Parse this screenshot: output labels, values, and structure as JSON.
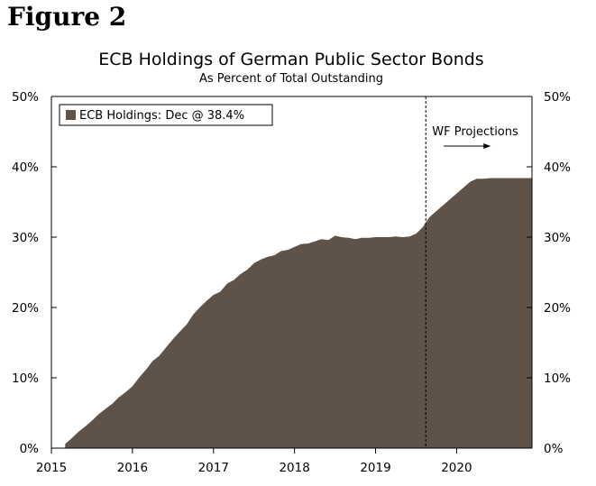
{
  "figure_label": "Figure 2",
  "chart_data": {
    "type": "area",
    "title": "ECB Holdings of German Public Sector Bonds",
    "subtitle": "As Percent of Total Outstanding",
    "xlabel": "",
    "ylabel": "",
    "xlim": [
      2015.0,
      2020.93
    ],
    "ylim": [
      0,
      50
    ],
    "x_ticks": [
      {
        "value": 2015.0,
        "label": "2015"
      },
      {
        "value": 2016.0,
        "label": "2016"
      },
      {
        "value": 2017.0,
        "label": "2017"
      },
      {
        "value": 2018.0,
        "label": "2018"
      },
      {
        "value": 2019.0,
        "label": "2019"
      },
      {
        "value": 2020.0,
        "label": "2020"
      }
    ],
    "y_ticks_left": [
      {
        "value": 0,
        "label": "0%"
      },
      {
        "value": 10,
        "label": "10%"
      },
      {
        "value": 20,
        "label": "20%"
      },
      {
        "value": 30,
        "label": "30%"
      },
      {
        "value": 40,
        "label": "40%"
      },
      {
        "value": 50,
        "label": "50%"
      }
    ],
    "y_ticks_right": [
      {
        "value": 0,
        "label": "0%"
      },
      {
        "value": 10,
        "label": "10%"
      },
      {
        "value": 20,
        "label": "20%"
      },
      {
        "value": 30,
        "label": "30%"
      },
      {
        "value": 40,
        "label": "40%"
      },
      {
        "value": 50,
        "label": "50%"
      }
    ],
    "series": [
      {
        "name": "ECB Holdings: Dec @ 38.4%",
        "color": "#5f5248",
        "x": [
          2015.17,
          2015.25,
          2015.33,
          2015.42,
          2015.5,
          2015.58,
          2015.67,
          2015.75,
          2015.83,
          2015.92,
          2016.0,
          2016.08,
          2016.17,
          2016.25,
          2016.33,
          2016.42,
          2016.5,
          2016.58,
          2016.67,
          2016.75,
          2016.83,
          2016.92,
          2017.0,
          2017.08,
          2017.17,
          2017.25,
          2017.33,
          2017.42,
          2017.5,
          2017.58,
          2017.67,
          2017.75,
          2017.83,
          2017.92,
          2018.0,
          2018.08,
          2018.17,
          2018.25,
          2018.33,
          2018.42,
          2018.5,
          2018.58,
          2018.67,
          2018.75,
          2018.83,
          2018.92,
          2019.0,
          2019.08,
          2019.17,
          2019.25,
          2019.33,
          2019.42,
          2019.5,
          2019.58,
          2019.62,
          2019.67,
          2019.75,
          2019.83,
          2019.92,
          2020.0,
          2020.08,
          2020.17,
          2020.25,
          2020.33,
          2020.42,
          2020.5,
          2020.58,
          2020.67,
          2020.75,
          2020.83,
          2020.93
        ],
        "values": [
          0.6,
          1.4,
          2.3,
          3.1,
          3.9,
          4.8,
          5.6,
          6.3,
          7.2,
          8.0,
          8.8,
          10.0,
          11.2,
          12.4,
          13.1,
          14.4,
          15.5,
          16.5,
          17.6,
          19.0,
          20.0,
          21.0,
          21.8,
          22.2,
          23.4,
          23.9,
          24.7,
          25.4,
          26.3,
          26.8,
          27.2,
          27.4,
          28.0,
          28.2,
          28.6,
          29.0,
          29.1,
          29.4,
          29.7,
          29.6,
          30.2,
          30.0,
          29.9,
          29.7,
          29.9,
          29.9,
          30.0,
          30.0,
          30.0,
          30.1,
          30.0,
          30.1,
          30.5,
          31.4,
          32.1,
          32.9,
          33.7,
          34.5,
          35.4,
          36.2,
          37.0,
          37.9,
          38.3,
          38.3,
          38.4,
          38.4,
          38.4,
          38.4,
          38.4,
          38.4,
          38.4
        ]
      }
    ],
    "annotations": [
      {
        "text": "WF Projections",
        "x": 2019.62,
        "kind": "vertical-dashed-line-with-arrow"
      }
    ],
    "legend_position": "top-left",
    "grid": false
  }
}
